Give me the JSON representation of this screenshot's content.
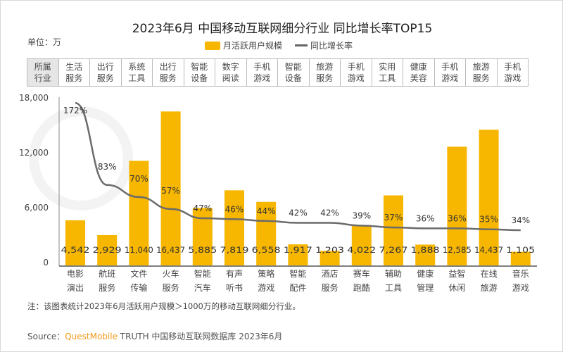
{
  "title": "2023年6月 中国移动互联网细分行业 同比增长率TOP15",
  "unit": "单位：万",
  "header_cell": [
    "所属",
    "行业"
  ],
  "watermark": "QUEST MOBILE",
  "note": "注：该图表统计2023年6月活跃用户规模＞1000万的移动互联网细分行业。",
  "source": {
    "prefix": "Source：",
    "brand": "QuestMobile",
    "rest": " TRUTH 中国移动互联网数据库 2023年6月"
  },
  "colors": {
    "bar": "#f7b600",
    "line": "#6b6b6b",
    "brand": "#f29b1d"
  },
  "chart_data": {
    "type": "bar+line",
    "title": "2023年6月 中国移动互联网细分行业 同比增长率TOP15",
    "categories": [
      [
        "电影",
        "演出"
      ],
      [
        "航班",
        "服务"
      ],
      [
        "文件",
        "传输"
      ],
      [
        "火车",
        "服务"
      ],
      [
        "智能",
        "汽车"
      ],
      [
        "有声",
        "听书"
      ],
      [
        "策略",
        "游戏"
      ],
      [
        "智能",
        "配件"
      ],
      [
        "酒店",
        "服务"
      ],
      [
        "赛车",
        "跑酷"
      ],
      [
        "辅助",
        "工具"
      ],
      [
        "健康",
        "管理"
      ],
      [
        "益智",
        "休闲"
      ],
      [
        "在线",
        "旅游"
      ],
      [
        "音乐",
        "游戏"
      ]
    ],
    "industries": [
      [
        "生活",
        "服务"
      ],
      [
        "出行",
        "服务"
      ],
      [
        "系统",
        "工具"
      ],
      [
        "出行",
        "服务"
      ],
      [
        "智能",
        "设备"
      ],
      [
        "数字",
        "阅读"
      ],
      [
        "手机",
        "游戏"
      ],
      [
        "智能",
        "设备"
      ],
      [
        "旅游",
        "服务"
      ],
      [
        "手机",
        "游戏"
      ],
      [
        "实用",
        "工具"
      ],
      [
        "健康",
        "美容"
      ],
      [
        "手机",
        "游戏"
      ],
      [
        "旅游",
        "服务"
      ],
      [
        "手机",
        "游戏"
      ]
    ],
    "series": [
      {
        "name": "月活跃用户规模",
        "type": "bar",
        "values": [
          4542,
          2929,
          11040,
          16437,
          5885,
          7819,
          6558,
          1917,
          1203,
          4022,
          7267,
          1888,
          12585,
          14437,
          1105
        ],
        "labels": [
          "4,542",
          "2,929",
          "11,040",
          "16,437",
          "5,885",
          "7,819",
          "6,558",
          "1,917",
          "1,203",
          "4,022",
          "7,267",
          "1,888",
          "12,585",
          "14,437",
          "1,105"
        ]
      },
      {
        "name": "同比增长率",
        "type": "line",
        "values": [
          172,
          83,
          70,
          57,
          47,
          46,
          44,
          42,
          42,
          39,
          37,
          36,
          36,
          35,
          34
        ],
        "labels": [
          "172%",
          "83%",
          "70%",
          "57%",
          "47%",
          "46%",
          "44%",
          "42%",
          "42%",
          "39%",
          "37%",
          "36%",
          "36%",
          "35%",
          "34%"
        ]
      }
    ],
    "yaxis": {
      "ticks": [
        0,
        6000,
        12000,
        18000
      ],
      "tick_labels": [
        "0",
        "6,000",
        "12,000",
        "18,000"
      ],
      "ylim": [
        0,
        18000
      ]
    },
    "legend": "top-center",
    "grid": false
  }
}
